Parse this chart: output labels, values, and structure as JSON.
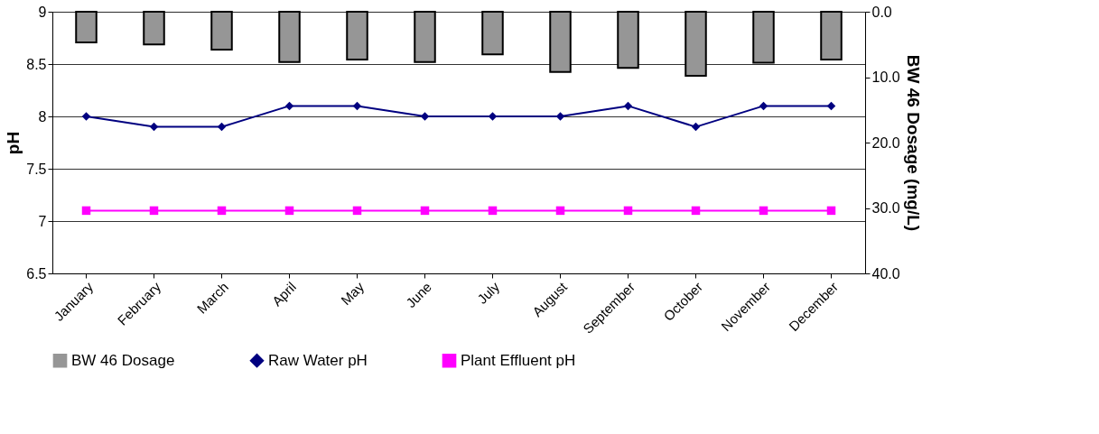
{
  "chart_data": {
    "type": "bar",
    "categories": [
      "January",
      "February",
      "March",
      "April",
      "May",
      "June",
      "July",
      "August",
      "September",
      "October",
      "November",
      "December"
    ],
    "ylabel": "pH",
    "y2label": "BW 46 Dosage (mg/L)",
    "ylim": [
      6.5,
      9
    ],
    "yticks": [
      6.5,
      7,
      7.5,
      8,
      8.5,
      9
    ],
    "y2lim": [
      40,
      0
    ],
    "y2ticks": [
      {
        "value": 0,
        "label": "0.0"
      },
      {
        "value": 10,
        "label": "10.0"
      },
      {
        "value": 20,
        "label": "20.0"
      },
      {
        "value": 30,
        "label": "30.0"
      },
      {
        "value": 40,
        "label": "40.0"
      }
    ],
    "grid": "y",
    "legend": "bottom",
    "series": [
      {
        "name": "BW 46 Dosage",
        "axis": "y2",
        "color": "#969696",
        "values": [
          4.7,
          5.0,
          5.8,
          7.7,
          7.3,
          7.7,
          6.5,
          9.2,
          8.6,
          9.8,
          7.8,
          7.3
        ]
      },
      {
        "name": "Raw Water pH",
        "type": "line",
        "color": "#000080",
        "marker": "diamond",
        "values": [
          8.0,
          7.9,
          7.9,
          8.1,
          8.1,
          8.0,
          8.0,
          8.0,
          8.1,
          7.9,
          8.1,
          8.1
        ]
      },
      {
        "name": "Plant Effluent pH",
        "type": "line",
        "color": "#ff00ff",
        "marker": "square",
        "values": [
          7.1,
          7.1,
          7.1,
          7.1,
          7.1,
          7.1,
          7.1,
          7.1,
          7.1,
          7.1,
          7.1,
          7.1
        ]
      }
    ]
  }
}
